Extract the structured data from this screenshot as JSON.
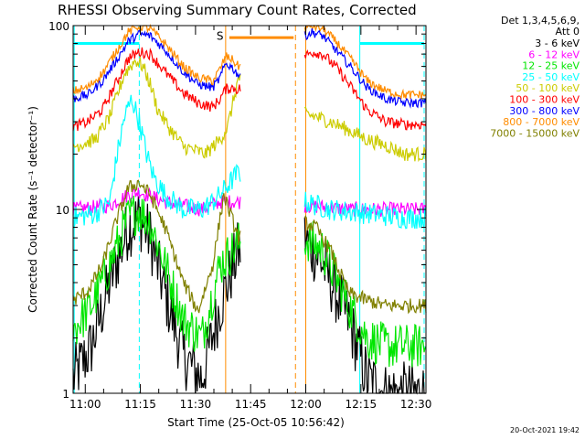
{
  "chart_data": {
    "type": "line",
    "title": "RHESSI Observing Summary Count Rates, Corrected",
    "ylabel": "Corrected Count Rate (s⁻¹ detector⁻¹)",
    "xlabel": "Start Time (25-Oct-05 10:56:42)",
    "footer": "20-Oct-2021 19:42",
    "det_line1": "Det 1,3,4,5,6,9,",
    "det_line2": "Att 0",
    "flare_marker": "S",
    "yscale": "log",
    "ylim": [
      1,
      100
    ],
    "y_ticks": [
      "1",
      "10",
      "100"
    ],
    "xlim": [
      0,
      96
    ],
    "x_ticks": [
      {
        "label": "11:00",
        "min": 3.3
      },
      {
        "label": "11:15",
        "min": 18.3
      },
      {
        "label": "11:30",
        "min": 33.3
      },
      {
        "label": "11:45",
        "min": 48.3
      },
      {
        "label": "12:00",
        "min": 63.3
      },
      {
        "label": "12:15",
        "min": 78.3
      },
      {
        "label": "12:30",
        "min": 93.3
      }
    ],
    "data_gap": [
      45.5,
      63.0
    ],
    "vlines": [
      {
        "min": 0.3,
        "color": "#00ffff",
        "style": "solid"
      },
      {
        "min": 18.0,
        "color": "#00ffff",
        "style": "dashed"
      },
      {
        "min": 41.5,
        "color": "#ff8c00",
        "style": "solid"
      },
      {
        "min": 60.5,
        "color": "#ff8c00",
        "style": "dashed"
      },
      {
        "min": 63.3,
        "color": "#ff8c00",
        "style": "solid"
      },
      {
        "min": 78.0,
        "color": "#00ffff",
        "style": "solid"
      },
      {
        "min": 95.5,
        "color": "#00ffff",
        "style": "dashed"
      }
    ],
    "saa_bars": [
      {
        "x": [
          0.3,
          18.0
        ],
        "y": 80,
        "color": "#00ffff"
      },
      {
        "x": [
          42.5,
          60.0
        ],
        "y": 86,
        "color": "#ff8c00"
      },
      {
        "x": [
          78.0,
          95.5
        ],
        "y": 80,
        "color": "#00ffff"
      }
    ],
    "series": [
      {
        "name": "3 - 6 keV",
        "color": "#000000",
        "noise": 0.35,
        "x": [
          0,
          5,
          10,
          15,
          18,
          21,
          25,
          30,
          35,
          40,
          45,
          63,
          68,
          75,
          80,
          85,
          90,
          96
        ],
        "y": [
          1.2,
          1.8,
          4.0,
          8.0,
          9.0,
          7.0,
          3.5,
          1.6,
          1.2,
          3.0,
          6.0,
          7.0,
          5.0,
          2.5,
          1.2,
          1.0,
          1.0,
          1.0
        ]
      },
      {
        "name": "6 - 12 keV",
        "color": "#ff00ff",
        "noise": 0.08,
        "x": [
          0,
          10,
          15,
          18,
          25,
          35,
          40,
          45,
          63,
          75,
          85,
          96
        ],
        "y": [
          10,
          10.5,
          12,
          12.5,
          11,
          10,
          11,
          11,
          10.5,
          10,
          10,
          10
        ]
      },
      {
        "name": "12 - 25 keV",
        "color": "#00e600",
        "noise": 0.25,
        "x": [
          0,
          5,
          10,
          15,
          18,
          21,
          25,
          30,
          35,
          40,
          45,
          63,
          68,
          75,
          80,
          85,
          90,
          96
        ],
        "y": [
          2.2,
          3.0,
          5.0,
          9.0,
          10.0,
          8.5,
          5.0,
          2.5,
          2.0,
          5.0,
          6.5,
          7.0,
          6.0,
          3.0,
          2.0,
          1.8,
          1.8,
          1.8
        ]
      },
      {
        "name": "25 - 50 keV",
        "color": "#00ffff",
        "noise": 0.12,
        "x": [
          0,
          6,
          10,
          12,
          14,
          16,
          18,
          20,
          22,
          25,
          30,
          35,
          38,
          40,
          45,
          63,
          70,
          80,
          90,
          96
        ],
        "y": [
          9,
          9.5,
          11,
          20,
          32,
          40,
          30,
          20,
          15,
          12,
          10,
          10,
          11,
          12,
          16,
          11,
          10,
          9.5,
          9,
          9
        ]
      },
      {
        "name": "50 - 100 keV",
        "color": "#cccc00",
        "noise": 0.08,
        "x": [
          0,
          6,
          10,
          14,
          17,
          19,
          21,
          23,
          26,
          30,
          33,
          36,
          38,
          40,
          42,
          45,
          63,
          66,
          70,
          75,
          80,
          86,
          90,
          96
        ],
        "y": [
          22,
          24,
          32,
          55,
          65,
          60,
          48,
          35,
          28,
          22,
          21,
          20,
          22,
          24,
          28,
          52,
          33,
          32,
          30,
          27,
          24,
          22,
          20,
          20
        ]
      },
      {
        "name": "100 - 300 keV",
        "color": "#ff0000",
        "noise": 0.06,
        "x": [
          0,
          4,
          8,
          12,
          15,
          18,
          21,
          25,
          30,
          34,
          38,
          40,
          41.5,
          43,
          45,
          63,
          65,
          68,
          72,
          76,
          80,
          85,
          90,
          96
        ],
        "y": [
          28,
          30,
          35,
          50,
          66,
          72,
          70,
          56,
          43,
          38,
          36,
          40,
          45,
          46,
          45,
          68,
          72,
          70,
          58,
          45,
          35,
          30,
          29,
          29
        ]
      },
      {
        "name": "300 - 800 keV",
        "color": "#0000ff",
        "noise": 0.05,
        "x": [
          0,
          4,
          8,
          12,
          15,
          18,
          21,
          25,
          30,
          34,
          38,
          40,
          41.5,
          43,
          45,
          63,
          65,
          68,
          72,
          76,
          80,
          85,
          90,
          96
        ],
        "y": [
          40,
          42,
          50,
          66,
          82,
          90,
          88,
          74,
          56,
          48,
          46,
          52,
          62,
          60,
          54,
          88,
          92,
          88,
          72,
          58,
          46,
          40,
          38,
          38
        ]
      },
      {
        "name": "800 - 7000 keV",
        "color": "#ff8c00",
        "noise": 0.05,
        "x": [
          0,
          4,
          8,
          12,
          15,
          18,
          21,
          25,
          30,
          34,
          38,
          40,
          41.5,
          43,
          45,
          63,
          65,
          68,
          72,
          76,
          80,
          85,
          90,
          96
        ],
        "y": [
          44,
          46,
          55,
          74,
          92,
          100,
          96,
          80,
          60,
          52,
          50,
          58,
          68,
          66,
          60,
          96,
          100,
          96,
          80,
          64,
          50,
          44,
          42,
          42
        ]
      },
      {
        "name": "7000 - 15000 keV",
        "color": "#808000",
        "noise": 0.08,
        "x": [
          0,
          4,
          8,
          12,
          15,
          18,
          21,
          25,
          30,
          34,
          38,
          41,
          45,
          63,
          66,
          70,
          75,
          80,
          85,
          90,
          96
        ],
        "y": [
          3.2,
          3.6,
          5.0,
          9.0,
          13.0,
          14.0,
          12.0,
          8.0,
          4.0,
          2.8,
          5.0,
          12.0,
          7.0,
          8.5,
          8.0,
          6.0,
          3.5,
          3.2,
          3.0,
          3.0,
          3.0
        ]
      }
    ]
  }
}
